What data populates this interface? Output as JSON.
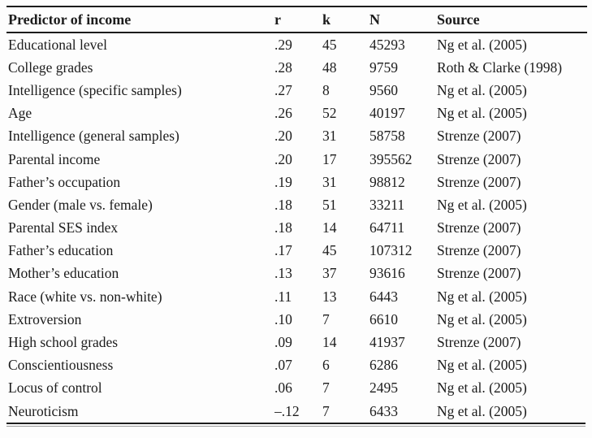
{
  "table": {
    "columns": [
      {
        "key": "predictor",
        "label": "Predictor of income"
      },
      {
        "key": "r",
        "label": "r"
      },
      {
        "key": "k",
        "label": "k"
      },
      {
        "key": "n",
        "label": "N"
      },
      {
        "key": "source",
        "label": "Source"
      }
    ],
    "rows": [
      {
        "predictor": "Educational level",
        "r": ".29",
        "k": "45",
        "n": "45293",
        "source": "Ng et al. (2005)"
      },
      {
        "predictor": "College grades",
        "r": ".28",
        "k": "48",
        "n": "9759",
        "source": "Roth & Clarke (1998)"
      },
      {
        "predictor": "Intelligence (specific samples)",
        "r": ".27",
        "k": "8",
        "n": "9560",
        "source": "Ng et al. (2005)"
      },
      {
        "predictor": "Age",
        "r": ".26",
        "k": "52",
        "n": "40197",
        "source": "Ng et al. (2005)"
      },
      {
        "predictor": "Intelligence (general samples)",
        "r": ".20",
        "k": "31",
        "n": "58758",
        "source": "Strenze (2007)"
      },
      {
        "predictor": "Parental income",
        "r": ".20",
        "k": "17",
        "n": "395562",
        "source": "Strenze (2007)"
      },
      {
        "predictor": "Father’s occupation",
        "r": ".19",
        "k": "31",
        "n": "98812",
        "source": "Strenze (2007)"
      },
      {
        "predictor": "Gender (male vs. female)",
        "r": ".18",
        "k": "51",
        "n": "33211",
        "source": "Ng et al. (2005)"
      },
      {
        "predictor": "Parental SES index",
        "r": ".18",
        "k": "14",
        "n": "64711",
        "source": "Strenze (2007)"
      },
      {
        "predictor": "Father’s education",
        "r": ".17",
        "k": "45",
        "n": "107312",
        "source": "Strenze (2007)"
      },
      {
        "predictor": "Mother’s education",
        "r": ".13",
        "k": "37",
        "n": "93616",
        "source": "Strenze (2007)"
      },
      {
        "predictor": "Race (white vs. non-white)",
        "r": ".11",
        "k": "13",
        "n": "6443",
        "source": "Ng et al. (2005)"
      },
      {
        "predictor": "Extroversion",
        "r": ".10",
        "k": "7",
        "n": "6610",
        "source": "Ng et al. (2005)"
      },
      {
        "predictor": "High school grades",
        "r": ".09",
        "k": "14",
        "n": "41937",
        "source": "Strenze (2007)"
      },
      {
        "predictor": "Conscientiousness",
        "r": ".07",
        "k": "6",
        "n": "6286",
        "source": "Ng et al. (2005)"
      },
      {
        "predictor": "Locus of control",
        "r": ".06",
        "k": "7",
        "n": "2495",
        "source": "Ng et al. (2005)"
      },
      {
        "predictor": "Neuroticism",
        "r": "–.12",
        "k": "7",
        "n": "6433",
        "source": "Ng et al. (2005)"
      }
    ]
  }
}
